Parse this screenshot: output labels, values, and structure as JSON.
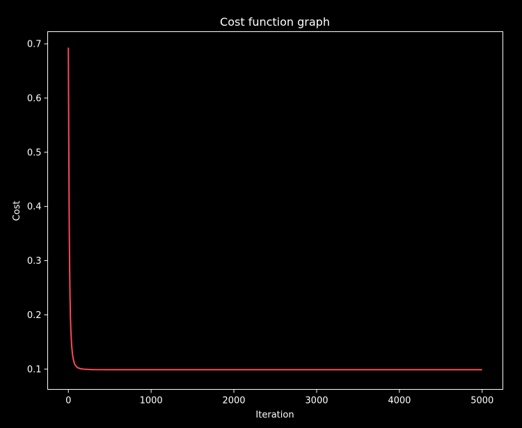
{
  "chart_data": {
    "type": "line",
    "title": "Cost function graph",
    "xlabel": "Iteration",
    "ylabel": "Cost",
    "xlim": [
      -250,
      5250
    ],
    "ylim": [
      0.0625,
      0.7225
    ],
    "xticks": [
      0,
      1000,
      2000,
      3000,
      4000,
      5000
    ],
    "xtick_labels": [
      "0",
      "1000",
      "2000",
      "3000",
      "4000",
      "5000"
    ],
    "yticks": [
      0.1,
      0.2,
      0.3,
      0.4,
      0.5,
      0.6,
      0.7
    ],
    "ytick_labels": [
      "0.1",
      "0.2",
      "0.3",
      "0.4",
      "0.5",
      "0.6",
      "0.7"
    ],
    "grid": false,
    "background_color": "#000000",
    "axis_color": "#ffffff",
    "series": [
      {
        "color": "#ff4757",
        "x": [
          0,
          5,
          10,
          15,
          20,
          25,
          30,
          40,
          50,
          60,
          70,
          80,
          100,
          120,
          150,
          200,
          300,
          500,
          1000,
          2000,
          3000,
          4000,
          5000
        ],
        "y": [
          0.693,
          0.52,
          0.38,
          0.29,
          0.235,
          0.197,
          0.172,
          0.143,
          0.127,
          0.118,
          0.112,
          0.108,
          0.104,
          0.102,
          0.1005,
          0.0995,
          0.099,
          0.0988,
          0.0987,
          0.0987,
          0.0987,
          0.0987,
          0.0987
        ]
      }
    ]
  }
}
